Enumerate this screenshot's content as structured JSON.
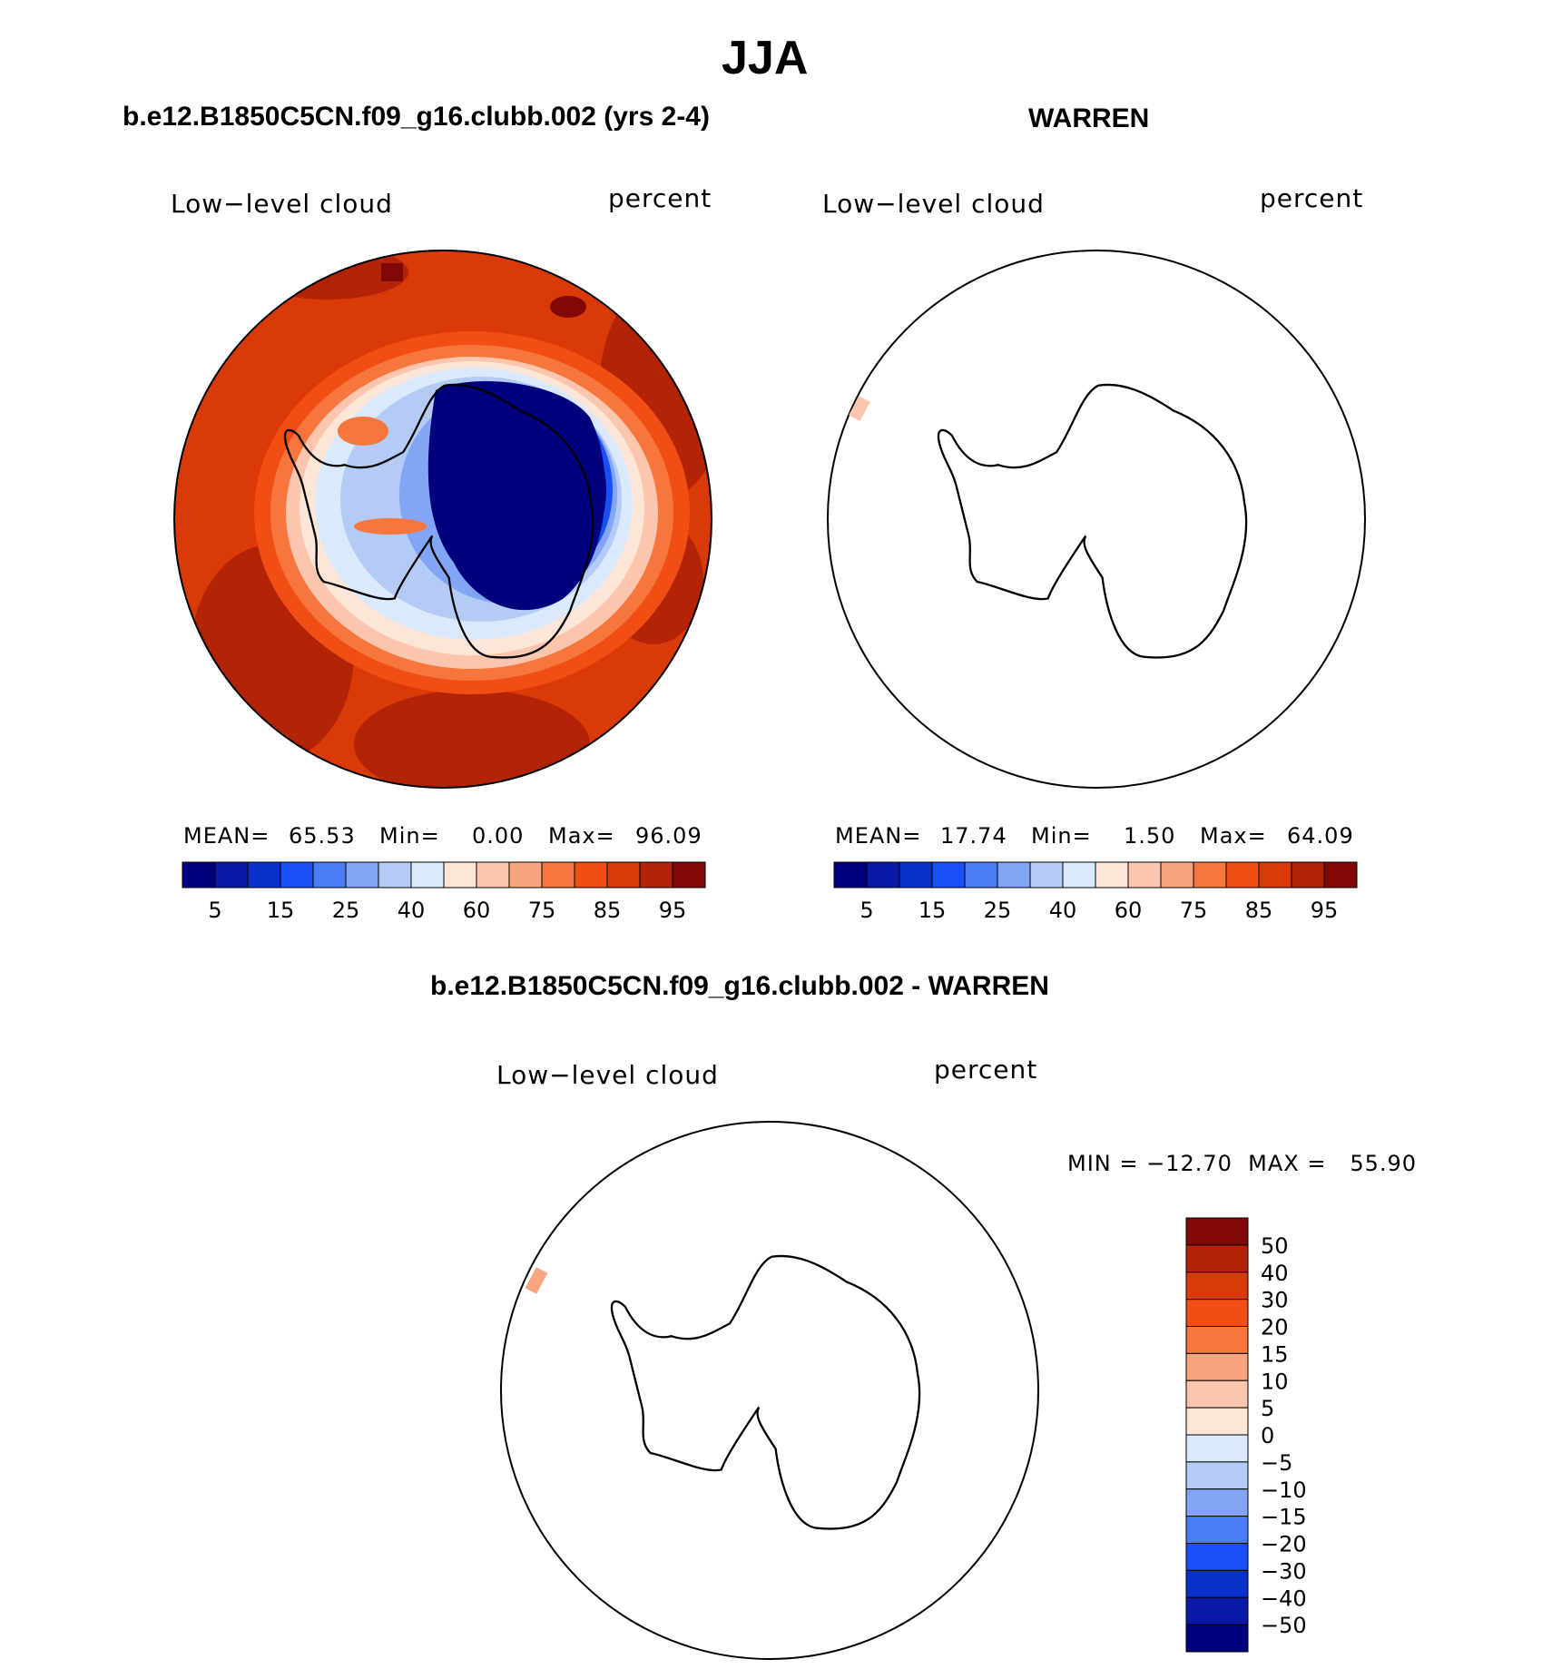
{
  "main_title": "JJA",
  "panels": [
    {
      "title": "b.e12.B1850C5CN.f09_g16.clubb.002 (yrs 2-4)",
      "field_label": "Low−level cloud",
      "units_label": "percent",
      "stats": {
        "mean_label": "MEAN=",
        "mean": "65.53",
        "min_label": "Min=",
        "min": "0.00",
        "max_label": "Max=",
        "max": "96.09"
      }
    },
    {
      "title": "WARREN",
      "field_label": "Low−level cloud",
      "units_label": "percent",
      "stats": {
        "mean_label": "MEAN=",
        "mean": "17.74",
        "min_label": "Min=",
        "min": "1.50",
        "max_label": "Max=",
        "max": "64.09"
      }
    },
    {
      "title": "b.e12.B1850C5CN.f09_g16.clubb.002 - WARREN",
      "field_label": "Low−level cloud",
      "units_label": "percent",
      "stats_line": "MIN = −12.70  MAX =   55.90"
    }
  ],
  "abs_colorbar": {
    "colors": [
      "#00007f",
      "#0a1aa6",
      "#0a30cc",
      "#1a4ff5",
      "#4a7df5",
      "#82a6f5",
      "#b4ccf5",
      "#daeafc",
      "#fde6d7",
      "#fbc6ad",
      "#f8a480",
      "#f6763e",
      "#f04e15",
      "#d93a07",
      "#b32306",
      "#820707"
    ],
    "tick_labels": [
      "5",
      "15",
      "25",
      "40",
      "60",
      "75",
      "85",
      "95"
    ]
  },
  "diff_colorbar": {
    "colors": [
      "#820707",
      "#b32306",
      "#d93a07",
      "#f04e15",
      "#f6763e",
      "#f8a480",
      "#fbc6ad",
      "#fde6d7",
      "#daeafc",
      "#b4ccf5",
      "#82a6f5",
      "#4a7df5",
      "#1a4ff5",
      "#0a30cc",
      "#0a1aa6",
      "#00007f"
    ],
    "tick_labels": [
      "50",
      "40",
      "30",
      "20",
      "15",
      "10",
      "5",
      "0",
      "−5",
      "−10",
      "−15",
      "−20",
      "−30",
      "−40",
      "−50"
    ]
  },
  "chart_data": [
    {
      "type": "heatmap",
      "title": "b.e12.B1850C5CN.f09_g16.clubb.002 (yrs 2-4)",
      "projection": "south-polar-stereographic",
      "variable": "Low-level cloud",
      "units": "percent",
      "mean": 65.53,
      "min": 0.0,
      "max": 96.09,
      "contour_levels": [
        5,
        10,
        15,
        20,
        25,
        30,
        40,
        50,
        60,
        70,
        75,
        80,
        85,
        90,
        95
      ]
    },
    {
      "type": "heatmap",
      "title": "WARREN",
      "projection": "south-polar-stereographic",
      "variable": "Low-level cloud",
      "units": "percent",
      "mean": 17.74,
      "min": 1.5,
      "max": 64.09,
      "contour_levels": [
        5,
        10,
        15,
        20,
        25,
        30,
        40,
        50,
        60,
        70,
        75,
        80,
        85,
        90,
        95
      ]
    },
    {
      "type": "heatmap",
      "title": "b.e12.B1850C5CN.f09_g16.clubb.002 - WARREN",
      "projection": "south-polar-stereographic",
      "variable": "Low-level cloud",
      "units": "percent",
      "min": -12.7,
      "max": 55.9,
      "contour_levels": [
        -50,
        -40,
        -30,
        -20,
        -15,
        -10,
        -5,
        0,
        5,
        10,
        15,
        20,
        30,
        40,
        50
      ]
    }
  ]
}
